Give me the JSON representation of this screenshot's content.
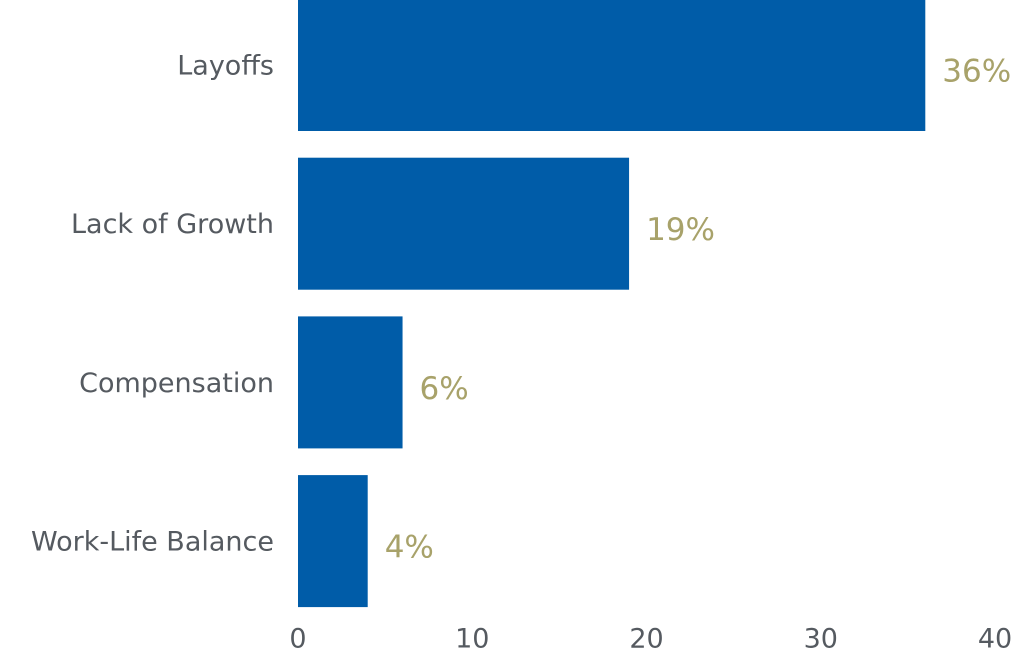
{
  "chart_data": {
    "type": "bar",
    "orientation": "horizontal",
    "categories": [
      "Layoffs",
      "Lack of Growth",
      "Compensation",
      "Work-Life Balance"
    ],
    "values": [
      36,
      19,
      6,
      4
    ],
    "value_labels": [
      "36%",
      "19%",
      "6%",
      "4%"
    ],
    "color": "#005ca8",
    "label_color": "#a8a26a",
    "xlim": [
      0,
      40
    ],
    "xticks": [
      0,
      10,
      20,
      30,
      40
    ],
    "grid": false
  }
}
